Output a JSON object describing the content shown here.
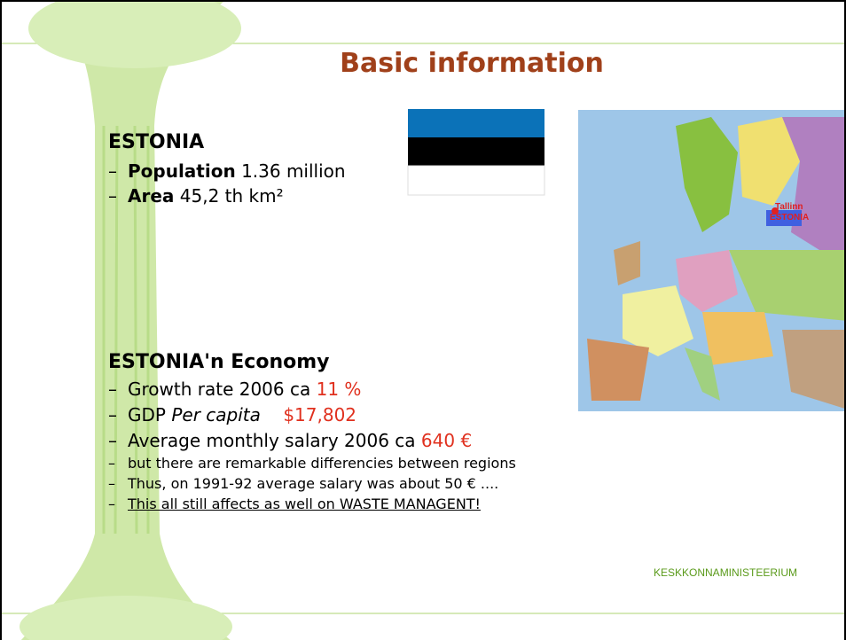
{
  "slide": {
    "title": "Basic information",
    "section1": {
      "heading": "ESTONIA",
      "items": [
        {
          "marker": "–",
          "label": "Population",
          "text": "1.36 million"
        },
        {
          "marker": "–",
          "label": "Area",
          "text": "45,2 th km²"
        }
      ]
    },
    "section2": {
      "heading": "ESTONIA'n Economy",
      "items": [
        {
          "marker": "–",
          "text": "Growth rate 2006 ca",
          "highlight": "11 %"
        },
        {
          "marker": "–",
          "text": "GDP",
          "italic": "Per capita",
          "highlight": "$17,802"
        },
        {
          "marker": "–",
          "text": "Average monthly salary 2006 ca",
          "highlight": "640 €"
        }
      ],
      "notes": [
        {
          "marker": "–",
          "text": "but there are remarkable differencies between regions"
        },
        {
          "marker": "–",
          "text": "Thus, on 1991-92 average salary was about 50 € ...."
        },
        {
          "marker": "–",
          "text": "This all still affects as well on WASTE MANAGENT!"
        }
      ]
    },
    "map": {
      "city": "Tallinn",
      "country": "ESTONIA"
    },
    "footer": "KESKKONNAMINISTEERIUM"
  }
}
